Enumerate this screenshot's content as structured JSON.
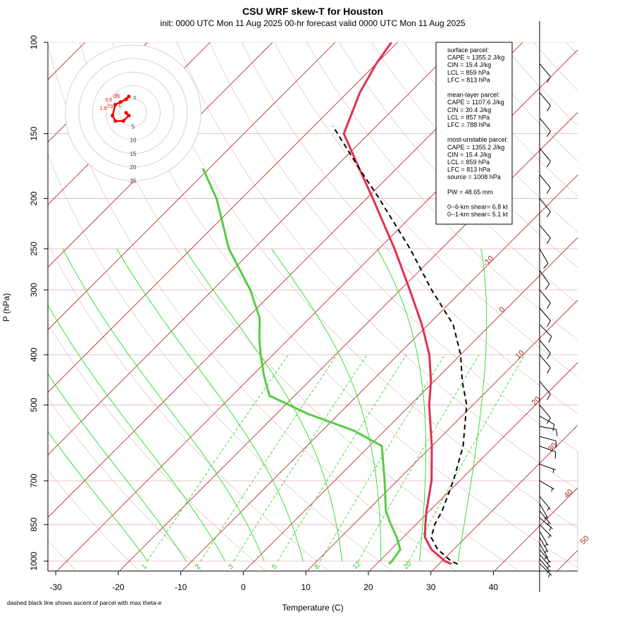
{
  "title": "CSU WRF skew-T for Houston",
  "subtitle": "init: 0000 UTC Mon 11 Aug 2025    00-hr forecast valid 0000 UTC Mon 11 Aug 2025",
  "footnote": "dashed black line shows ascent of parcel with max theta-e",
  "chart_data": {
    "type": "line",
    "xlabel": "Temperature (C)",
    "ylabel": "P (hPa)",
    "xlim": [
      -33,
      45
    ],
    "ylim": [
      1050,
      100
    ],
    "y_scale": "log",
    "x_ticks": [
      -30,
      -20,
      -10,
      0,
      10,
      20,
      30,
      40
    ],
    "y_ticks": [
      100,
      150,
      200,
      250,
      300,
      400,
      500,
      700,
      850,
      1000
    ],
    "isotherm_labels": [
      "-10",
      "0",
      "10",
      "20",
      "30",
      "40",
      "50"
    ],
    "mixing_ratio_labels": [
      "1",
      "2",
      "3",
      "5",
      "8",
      "12",
      "20"
    ],
    "hodograph_rings": [
      "5",
      "10",
      "15",
      "20",
      "25"
    ],
    "hodograph_labels": [
      "6",
      "3",
      "1",
      "0.5",
      "0.1",
      "1.5",
      "2",
      "0"
    ],
    "series": [],
    "info_lines": [
      "surface parcel:",
      "CAPE = 1355.2 J/kg",
      "CIN = 15.4 J/kg",
      "LCL = 859 hPa",
      "LFC = 813 hPa",
      "",
      "mean-layer parcel:",
      "CAPE = 1107.6 J/kg",
      "CIN = 30.4 J/kg",
      "LCL = 857 hPa",
      "LFC = 788 hPa",
      "",
      "most-unstable parcel:",
      "CAPE = 1355.2 J/kg",
      "CIN = 15.4 J/kg",
      "LCL = 859 hPa",
      "LFC = 813 hPa",
      "source = 1008 hPa",
      "",
      "PW =  48.65 mm",
      "",
      "0--6-km shear= 6.8 kt",
      "0--1-km shear= 5.1 kt"
    ],
    "temperature_profile": [
      [
        1013,
        32
      ],
      [
        1000,
        30.5
      ],
      [
        950,
        26.5
      ],
      [
        900,
        23.5
      ],
      [
        850,
        21.5
      ],
      [
        800,
        19.5
      ],
      [
        700,
        15.5
      ],
      [
        600,
        10
      ],
      [
        500,
        3
      ],
      [
        450,
        -0.5
      ],
      [
        400,
        -5
      ],
      [
        350,
        -11
      ],
      [
        300,
        -18.5
      ],
      [
        250,
        -27.5
      ],
      [
        200,
        -39
      ],
      [
        175,
        -46
      ],
      [
        150,
        -54
      ],
      [
        125,
        -58
      ],
      [
        110,
        -60
      ],
      [
        100,
        -61
      ]
    ],
    "dewpoint_profile": [
      [
        1013,
        22
      ],
      [
        1000,
        22
      ],
      [
        950,
        21.5
      ],
      [
        900,
        19
      ],
      [
        850,
        16
      ],
      [
        800,
        13
      ],
      [
        700,
        8
      ],
      [
        600,
        2
      ],
      [
        560,
        -5
      ],
      [
        520,
        -15
      ],
      [
        480,
        -24
      ],
      [
        440,
        -28
      ],
      [
        400,
        -32
      ],
      [
        370,
        -35
      ],
      [
        340,
        -38
      ],
      [
        300,
        -44
      ],
      [
        250,
        -54
      ],
      [
        200,
        -64
      ],
      [
        175,
        -71
      ]
    ],
    "parcel_profile": [
      [
        1013,
        33
      ],
      [
        1000,
        31.5
      ],
      [
        950,
        27.5
      ],
      [
        900,
        24.5
      ],
      [
        850,
        23
      ],
      [
        800,
        22
      ],
      [
        700,
        19
      ],
      [
        600,
        15
      ],
      [
        500,
        9
      ],
      [
        450,
        4.5
      ],
      [
        400,
        0
      ],
      [
        350,
        -6
      ],
      [
        300,
        -15
      ],
      [
        250,
        -25
      ],
      [
        200,
        -38
      ],
      [
        175,
        -46
      ],
      [
        150,
        -55
      ],
      [
        145,
        -57
      ]
    ],
    "wind_barbs": [
      {
        "p": 1010,
        "speed": 5,
        "dir": 315
      },
      {
        "p": 990,
        "speed": 5,
        "dir": 320
      },
      {
        "p": 970,
        "speed": 5,
        "dir": 320
      },
      {
        "p": 950,
        "speed": 5,
        "dir": 320
      },
      {
        "p": 925,
        "speed": 5,
        "dir": 330
      },
      {
        "p": 900,
        "speed": 5,
        "dir": 330
      },
      {
        "p": 875,
        "speed": 5,
        "dir": 330
      },
      {
        "p": 850,
        "speed": 5,
        "dir": 315
      },
      {
        "p": 825,
        "speed": 5,
        "dir": 310
      },
      {
        "p": 800,
        "speed": 5,
        "dir": 320
      },
      {
        "p": 775,
        "speed": 5,
        "dir": 330
      },
      {
        "p": 750,
        "speed": 5,
        "dir": 320
      },
      {
        "p": 700,
        "speed": 5,
        "dir": 300
      },
      {
        "p": 650,
        "speed": 5,
        "dir": 290
      },
      {
        "p": 600,
        "speed": 10,
        "dir": 290
      },
      {
        "p": 575,
        "speed": 10,
        "dir": 285
      },
      {
        "p": 550,
        "speed": 10,
        "dir": 280
      },
      {
        "p": 525,
        "speed": 10,
        "dir": 300
      },
      {
        "p": 500,
        "speed": 10,
        "dir": 320
      },
      {
        "p": 450,
        "speed": 10,
        "dir": 320
      },
      {
        "p": 400,
        "speed": 10,
        "dir": 320
      },
      {
        "p": 375,
        "speed": 10,
        "dir": 320
      },
      {
        "p": 350,
        "speed": 10,
        "dir": 315
      },
      {
        "p": 325,
        "speed": 10,
        "dir": 320
      },
      {
        "p": 300,
        "speed": 10,
        "dir": 320
      },
      {
        "p": 275,
        "speed": 10,
        "dir": 325
      },
      {
        "p": 250,
        "speed": 10,
        "dir": 330
      },
      {
        "p": 225,
        "speed": 10,
        "dir": 320
      },
      {
        "p": 200,
        "speed": 10,
        "dir": 320
      },
      {
        "p": 180,
        "speed": 10,
        "dir": 320
      },
      {
        "p": 160,
        "speed": 10,
        "dir": 320
      },
      {
        "p": 140,
        "speed": 10,
        "dir": 320
      },
      {
        "p": 125,
        "speed": 10,
        "dir": 320
      },
      {
        "p": 110,
        "speed": 10,
        "dir": 320
      }
    ],
    "hodograph_points": [
      [
        0,
        0
      ],
      [
        1,
        -1
      ],
      [
        -1,
        -3
      ],
      [
        -4,
        -3
      ],
      [
        -5,
        -1
      ],
      [
        -4,
        3
      ],
      [
        -2,
        4
      ],
      [
        0,
        5
      ],
      [
        1,
        6
      ]
    ],
    "colors": {
      "isotherm": "#b22222",
      "isobar": "#e0b0b0",
      "moist_adiabat": "#22dd22",
      "mixing_ratio": "#22cc22",
      "temperature": "#e03050",
      "dewpoint": "#55cc44",
      "parcel": "#000000",
      "hodograph": "#ee0000",
      "dry_adiabat_aux": "#d8b8b8"
    }
  }
}
